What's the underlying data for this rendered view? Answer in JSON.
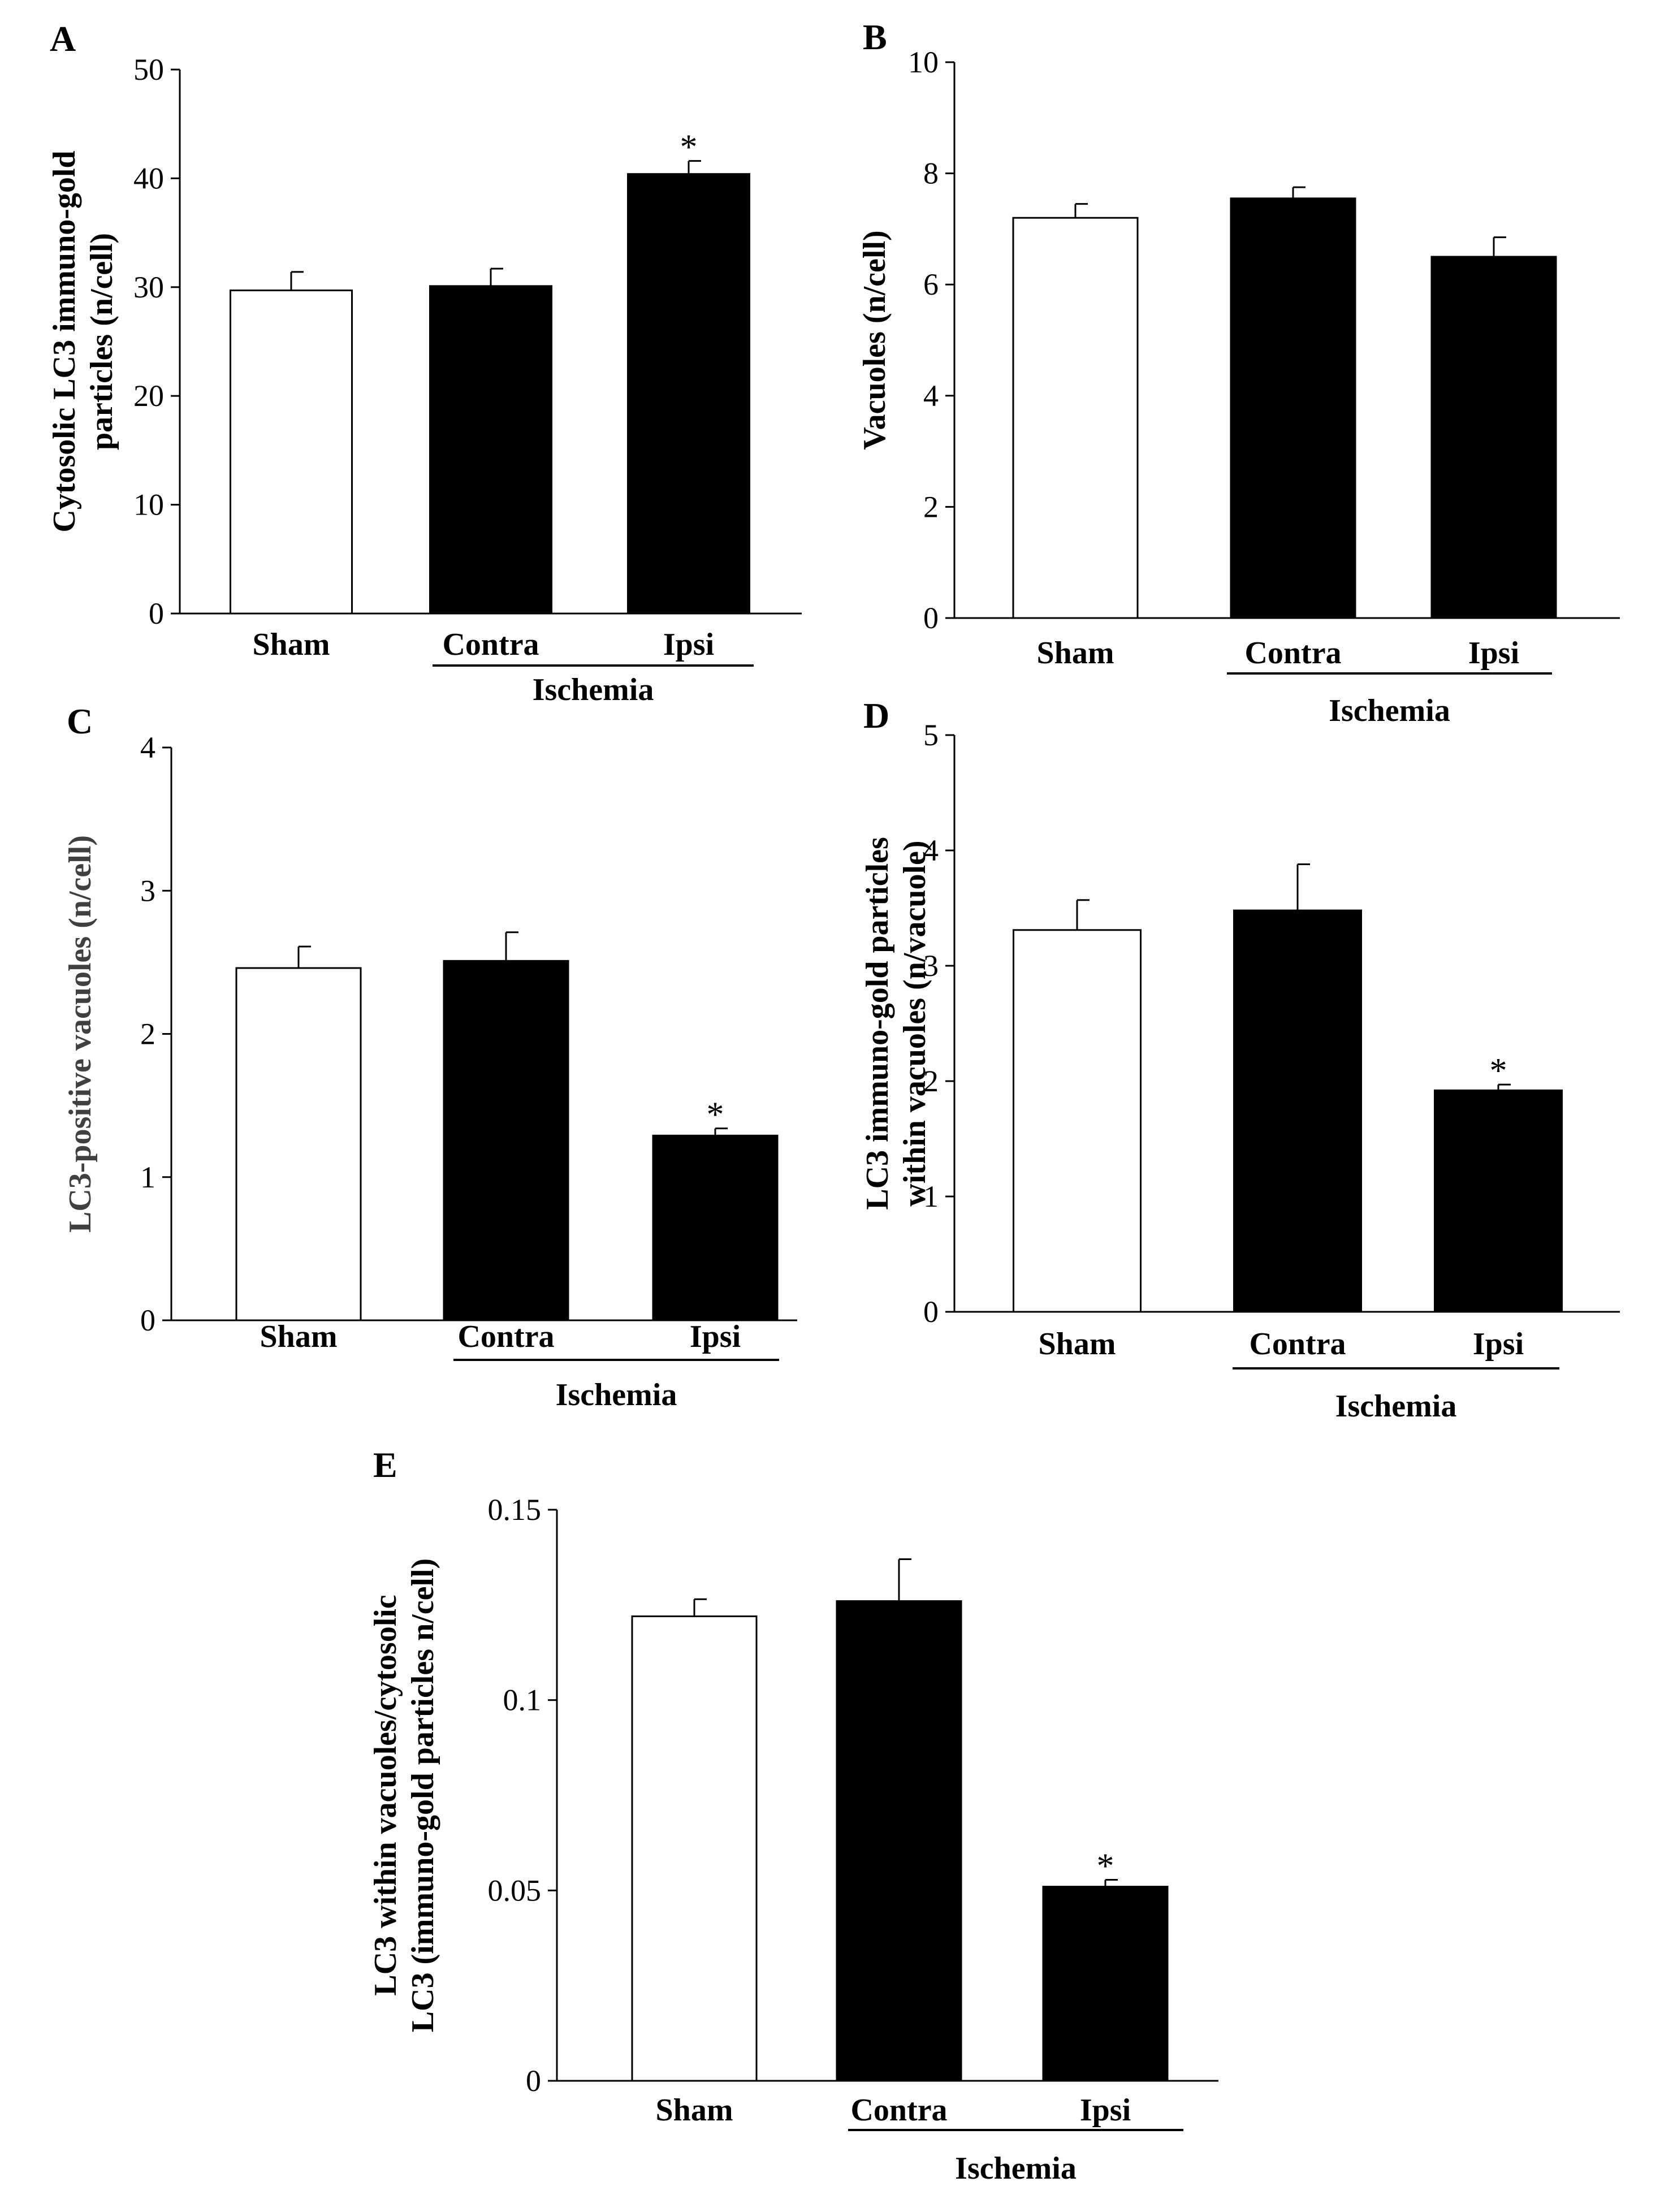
{
  "figure": {
    "colors": {
      "sham_fill": "#ffffff",
      "ischemia_fill": "#000000",
      "stroke": "#000000"
    }
  },
  "chart_data": [
    {
      "id": "A",
      "type": "bar",
      "panel_label": "A",
      "categories": [
        "Sham",
        "Contra",
        "Ipsi"
      ],
      "values": [
        29.7,
        30.1,
        40.4
      ],
      "errors": [
        1.7,
        1.6,
        1.2
      ],
      "significance": [
        "",
        "",
        "*"
      ],
      "fills": [
        "#ffffff",
        "#000000",
        "#000000"
      ],
      "group_label": "Ischemia",
      "group_members": [
        1,
        2
      ],
      "ylabel_lines": [
        "Cytosolic LC3 immuno-gold",
        "particles (n/cell)"
      ],
      "ylabel_color": "#000000",
      "ylim": [
        0,
        50
      ],
      "yticks": [
        0,
        10,
        20,
        30,
        40,
        50
      ],
      "ytick_labels": [
        "0",
        "10",
        "20",
        "30",
        "40",
        "50"
      ],
      "grid": false
    },
    {
      "id": "B",
      "type": "bar",
      "panel_label": "B",
      "categories": [
        "Sham",
        "Contra",
        "Ipsi"
      ],
      "values": [
        7.2,
        7.55,
        6.5
      ],
      "errors": [
        0.25,
        0.2,
        0.35
      ],
      "significance": [
        "",
        "",
        ""
      ],
      "fills": [
        "#ffffff",
        "#000000",
        "#000000"
      ],
      "group_label": "Ischemia",
      "group_members": [
        1,
        2
      ],
      "ylabel_lines": [
        "Vacuoles (n/cell)"
      ],
      "ylabel_color": "#000000",
      "ylim": [
        0,
        10
      ],
      "yticks": [
        0,
        2,
        4,
        6,
        8,
        10
      ],
      "ytick_labels": [
        "0",
        "2",
        "4",
        "6",
        "8",
        "10"
      ],
      "grid": false
    },
    {
      "id": "C",
      "type": "bar",
      "panel_label": "C",
      "categories": [
        "Sham",
        "Contra",
        "Ipsi"
      ],
      "values": [
        2.46,
        2.51,
        1.29
      ],
      "errors": [
        0.15,
        0.2,
        0.05
      ],
      "significance": [
        "",
        "",
        "*"
      ],
      "fills": [
        "#ffffff",
        "#000000",
        "#000000"
      ],
      "group_label": "Ischemia",
      "group_members": [
        1,
        2
      ],
      "ylabel_lines": [
        "LC3-positive vacuoles (n/cell)"
      ],
      "ylabel_color": "#404040",
      "ylim": [
        0,
        4
      ],
      "yticks": [
        0,
        1,
        2,
        3,
        4
      ],
      "ytick_labels": [
        "0",
        "1",
        "2",
        "3",
        "4"
      ],
      "grid": false
    },
    {
      "id": "D",
      "type": "bar",
      "panel_label": "D",
      "categories": [
        "Sham",
        "Contra",
        "Ipsi"
      ],
      "values": [
        3.31,
        3.48,
        1.92
      ],
      "errors": [
        0.26,
        0.4,
        0.05
      ],
      "significance": [
        "",
        "",
        "*"
      ],
      "fills": [
        "#ffffff",
        "#000000",
        "#000000"
      ],
      "group_label": "Ischemia",
      "group_members": [
        1,
        2
      ],
      "ylabel_lines": [
        "LC3 immuno-gold particles",
        "within vacuoles (n/vacuole)"
      ],
      "ylabel_color": "#000000",
      "ylim": [
        0,
        5
      ],
      "yticks": [
        0,
        1,
        2,
        3,
        4,
        5
      ],
      "ytick_labels": [
        "0",
        "1",
        "2",
        "3",
        "4",
        "5"
      ],
      "grid": false
    },
    {
      "id": "E",
      "type": "bar",
      "panel_label": "E",
      "categories": [
        "Sham",
        "Contra",
        "Ipsi"
      ],
      "values": [
        0.122,
        0.126,
        0.051
      ],
      "errors": [
        0.0045,
        0.011,
        0.0018
      ],
      "significance": [
        "",
        "",
        "*"
      ],
      "fills": [
        "#ffffff",
        "#000000",
        "#000000"
      ],
      "group_label": "Ischemia",
      "group_members": [
        1,
        2
      ],
      "ylabel_lines": [
        "LC3  within vacuoles/cytosolic",
        "LC3 (immuno-gold particles n/cell)"
      ],
      "ylabel_color": "#000000",
      "ylim": [
        0,
        0.15
      ],
      "yticks": [
        0,
        0.05,
        0.1,
        0.15
      ],
      "ytick_labels": [
        "0",
        "0.05",
        "0.1",
        "0.15"
      ],
      "grid": false
    }
  ]
}
